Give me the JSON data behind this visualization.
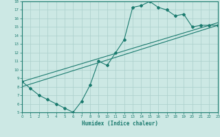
{
  "xlabel": "Humidex (Indice chaleur)",
  "bg_color": "#cce8e4",
  "line_color": "#1a7a6e",
  "grid_color": "#aacfcb",
  "xmin": 0,
  "xmax": 23,
  "ymin": 5,
  "ymax": 18,
  "line1_x": [
    0,
    1,
    2,
    3,
    4,
    5,
    6,
    7,
    8,
    9,
    10,
    11,
    12,
    13,
    14,
    15,
    16,
    17,
    18,
    19,
    20,
    21,
    22,
    23
  ],
  "line1_y": [
    8.6,
    7.8,
    7.0,
    6.5,
    6.0,
    5.5,
    5.0,
    6.3,
    8.2,
    11.0,
    10.5,
    12.0,
    13.5,
    17.3,
    17.5,
    18.0,
    17.3,
    17.0,
    16.3,
    16.5,
    15.0,
    15.2,
    15.2,
    15.2
  ],
  "line2_x": [
    0,
    23
  ],
  "line2_y": [
    8.6,
    15.5
  ],
  "line3_x": [
    0,
    23
  ],
  "line3_y": [
    8.0,
    15.2
  ],
  "xtick_labels": [
    "0",
    "1",
    "2",
    "3",
    "4",
    "5",
    "6",
    "7",
    "8",
    "9",
    "10",
    "11",
    "12",
    "13",
    "14",
    "15",
    "16",
    "17",
    "18",
    "19",
    "20",
    "21",
    "22",
    "23"
  ],
  "ytick_labels": [
    "5",
    "6",
    "7",
    "8",
    "9",
    "10",
    "11",
    "12",
    "13",
    "14",
    "15",
    "16",
    "17",
    "18"
  ]
}
